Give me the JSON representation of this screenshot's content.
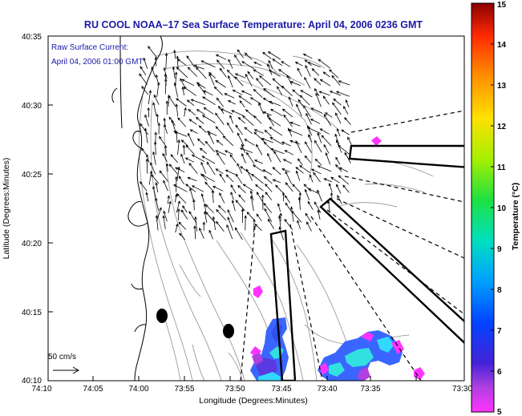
{
  "chart_data": {
    "type": "map",
    "title": "RU COOL  NOAA–17  Sea Surface Temperature:  April 04, 2006 0236 GMT",
    "xlabel": "Longitude (Degrees:Minutes)",
    "ylabel": "Latitude (Degrees:Minutes)",
    "x_ticks": [
      "74:10",
      "74:05",
      "74:00",
      "73:55",
      "73:50",
      "73:45",
      "73:40",
      "73:35",
      "73:30"
    ],
    "y_ticks": [
      "40:35",
      "40:30",
      "40:25",
      "40:20",
      "40:15",
      "40:10"
    ],
    "inset_text": [
      "Raw Surface Current:",
      "April 04, 2006 01:00 GMT"
    ],
    "scale_label": "50 cm/s",
    "colorbar": {
      "label": "Temperature (°C)",
      "min": 5,
      "max": 15,
      "ticks": [
        "5",
        "6",
        "7",
        "8",
        "9",
        "10",
        "11",
        "12",
        "13",
        "14",
        "15"
      ]
    }
  },
  "colors": {
    "title": "#1a1aa6",
    "coastline": "#000000",
    "bathymetry": "#9a9a9a",
    "sst_cold": "#ff33ff",
    "sst_mid": "#3a66ff",
    "sst_warm": "#33e0e0"
  }
}
